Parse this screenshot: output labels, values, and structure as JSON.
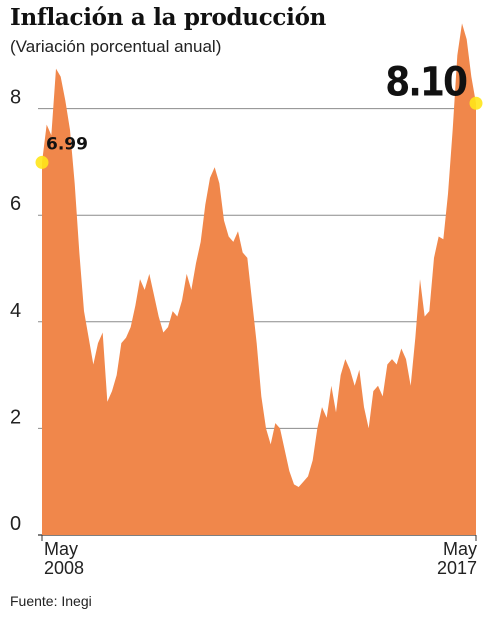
{
  "header": {
    "title": "Inflación a la producción",
    "subtitle": "(Variación porcentual anual)"
  },
  "footer": {
    "source": "Fuente: Inegi"
  },
  "colors": {
    "area": "#F0874B",
    "highlight": "#FFE619",
    "grid": "#777777",
    "text": "#222222"
  },
  "chart_data": {
    "type": "area",
    "title": "Inflación a la producción",
    "subtitle": "(Variación porcentual anual)",
    "ylim": [
      0,
      9.5
    ],
    "yticks": [
      0,
      2,
      4,
      6,
      8
    ],
    "xtick_labels": [
      {
        "line1": "May",
        "line2": "2008"
      },
      {
        "line1": "May",
        "line2": "2017"
      }
    ],
    "start_label": "May 2008",
    "end_label": "May 2017",
    "grid": true,
    "series": [
      {
        "values": [
          6.99,
          7.7,
          7.5,
          8.75,
          8.6,
          8.15,
          7.6,
          6.6,
          5.3,
          4.2,
          3.7,
          3.2,
          3.6,
          3.8,
          2.5,
          2.7,
          3.0,
          3.6,
          3.7,
          3.9,
          4.3,
          4.8,
          4.6,
          4.9,
          4.5,
          4.1,
          3.8,
          3.9,
          4.2,
          4.1,
          4.4,
          4.9,
          4.6,
          5.1,
          5.5,
          6.2,
          6.7,
          6.9,
          6.6,
          5.9,
          5.6,
          5.5,
          5.7,
          5.3,
          5.2,
          4.4,
          3.6,
          2.6,
          2.0,
          1.7,
          2.1,
          2.0,
          1.6,
          1.2,
          0.95,
          0.9,
          1.0,
          1.1,
          1.4,
          2.0,
          2.4,
          2.2,
          2.8,
          2.3,
          3.0,
          3.3,
          3.1,
          2.8,
          3.1,
          2.4,
          2.0,
          2.7,
          2.8,
          2.6,
          3.2,
          3.3,
          3.2,
          3.5,
          3.3,
          2.8,
          3.7,
          4.8,
          4.1,
          4.2,
          5.2,
          5.6,
          5.55,
          6.4,
          7.6,
          9.0,
          9.6,
          9.3,
          8.6,
          8.1
        ]
      }
    ],
    "annotations": [
      {
        "label": "6.99",
        "value": 6.99,
        "at": "start"
      },
      {
        "label": "8.10",
        "value": 8.1,
        "at": "end"
      }
    ]
  }
}
